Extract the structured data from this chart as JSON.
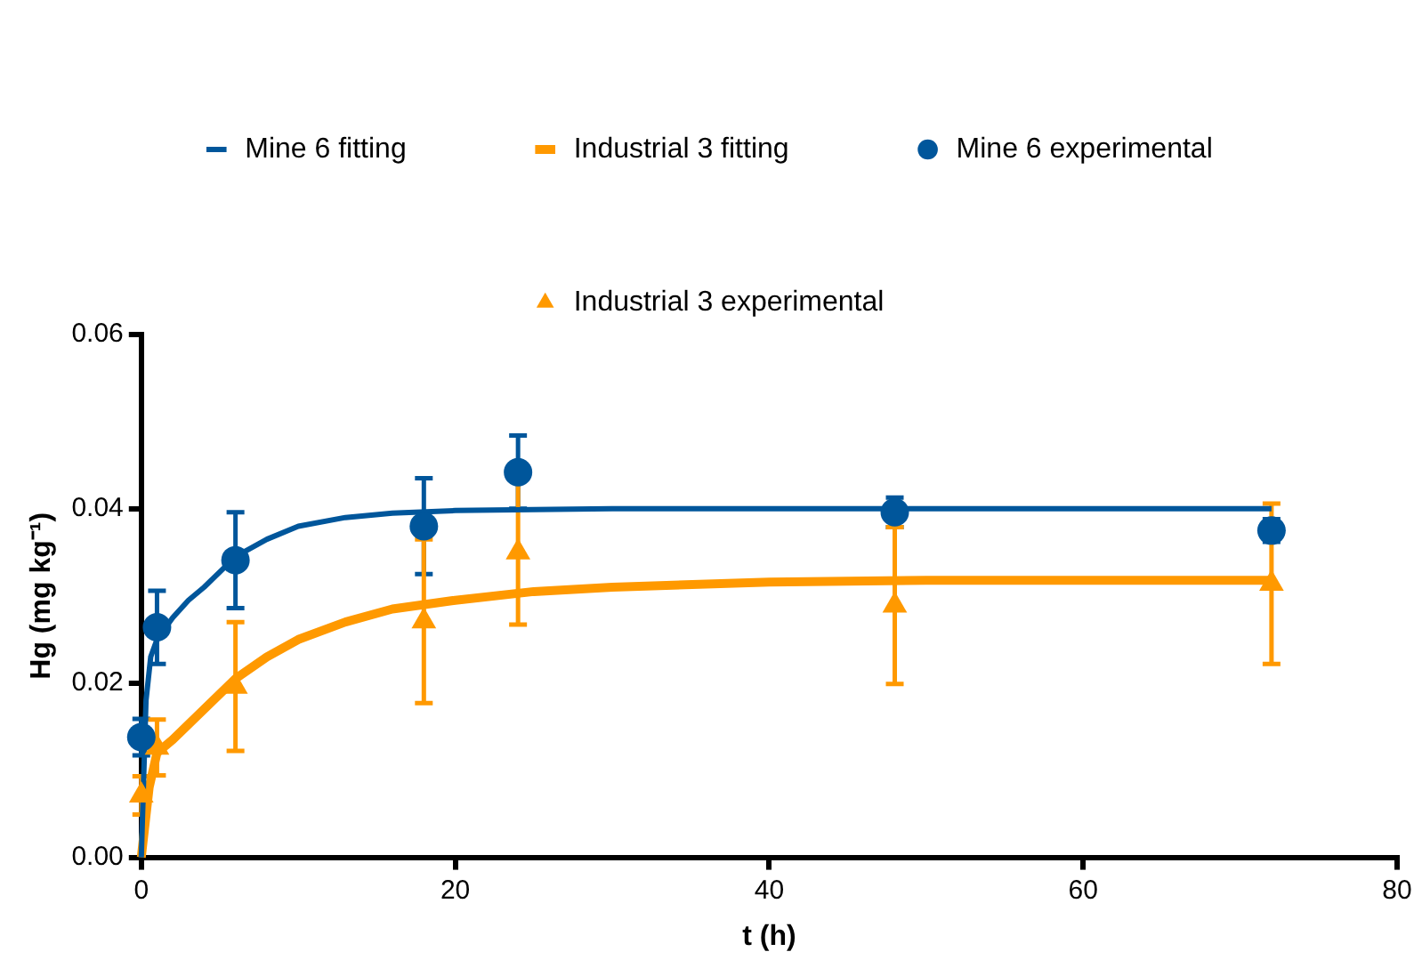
{
  "chart_data": {
    "type": "scatter",
    "xlabel": "t (h)",
    "ylabel": "Hg (mg kg⁻¹)",
    "xlim": [
      0,
      80
    ],
    "xticks": [
      0,
      20,
      40,
      60,
      80
    ],
    "ylim": [
      0,
      0.06
    ],
    "yticks": [
      {
        "value": 0,
        "label": "0.00"
      },
      {
        "value": 0.02,
        "label": "0.02"
      },
      {
        "value": 0.04,
        "label": "0.04"
      },
      {
        "value": 0.06,
        "label": "0.06"
      }
    ],
    "grid": false,
    "legend": "top",
    "series": [
      {
        "name": "Mine 6 fitting",
        "type": "line",
        "marker": "none",
        "color": "#00569b",
        "x": [
          0,
          0.3,
          0.6,
          1,
          2,
          3,
          4,
          6,
          8,
          10,
          13,
          16,
          20,
          25,
          30,
          40,
          50,
          60,
          72
        ],
        "values": [
          0,
          0.018,
          0.023,
          0.025,
          0.0275,
          0.0295,
          0.031,
          0.0345,
          0.0365,
          0.038,
          0.039,
          0.0395,
          0.0398,
          0.0399,
          0.04,
          0.04,
          0.04,
          0.04,
          0.04
        ]
      },
      {
        "name": "Industrial 3 fitting",
        "type": "line",
        "marker": "none",
        "color": "#ff9900",
        "x": [
          0,
          0.5,
          1,
          2,
          4,
          6,
          8,
          10,
          13,
          16,
          20,
          25,
          30,
          40,
          50,
          72
        ],
        "values": [
          0,
          0.008,
          0.012,
          0.0135,
          0.017,
          0.0205,
          0.023,
          0.025,
          0.027,
          0.0285,
          0.0295,
          0.0305,
          0.031,
          0.0316,
          0.0318,
          0.0318
        ]
      },
      {
        "name": "Mine 6 experimental",
        "type": "scatter",
        "marker": "circle",
        "color": "#00569b",
        "x": [
          0,
          1,
          6,
          18,
          24,
          48,
          72
        ],
        "values": [
          0.0138,
          0.0264,
          0.0341,
          0.038,
          0.0442,
          0.0396,
          0.0375
        ],
        "errors": [
          0.0021,
          0.0042,
          0.0055,
          0.0055,
          0.0042,
          0.0017,
          0.0013
        ]
      },
      {
        "name": "Industrial 3 experimental",
        "type": "scatter",
        "marker": "triangle",
        "color": "#ff9900",
        "x": [
          0,
          1,
          6,
          18,
          24,
          48,
          72
        ],
        "values": [
          0.0071,
          0.0126,
          0.0196,
          0.0271,
          0.035,
          0.0289,
          0.0314
        ],
        "errors": [
          0.0022,
          0.0032,
          0.0074,
          0.0094,
          0.0083,
          0.009,
          0.0092
        ]
      }
    ]
  }
}
